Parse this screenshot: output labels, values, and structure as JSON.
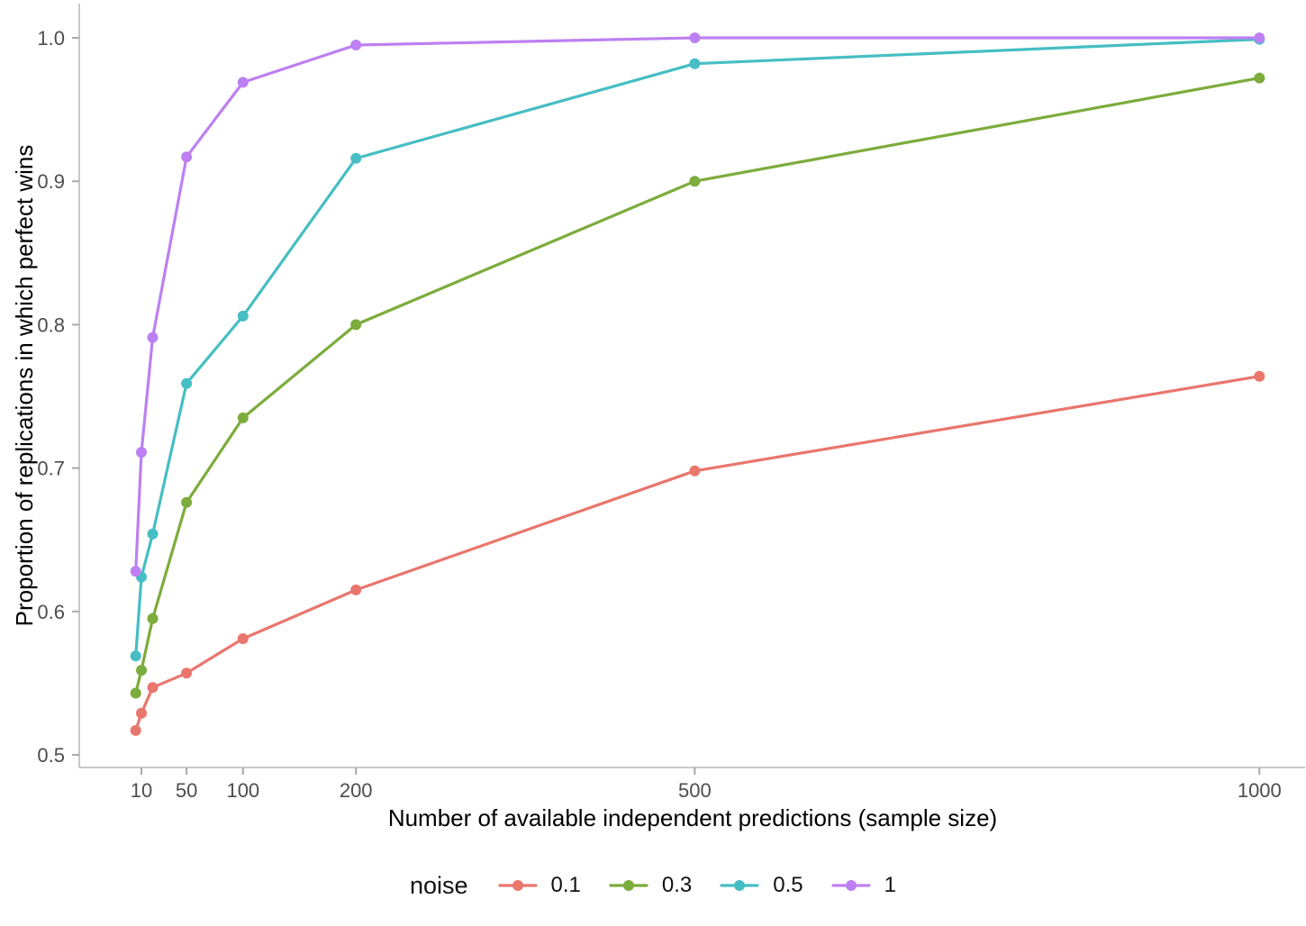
{
  "page": {
    "background_color": "#ffffff"
  },
  "chart_data": {
    "type": "line",
    "title": "",
    "xlabel": "Number of available independent predictions (sample size)",
    "ylabel": "Proportion of replications in which perfect wins",
    "x_scale": "linear",
    "grid": false,
    "xlim": [
      -45,
      1050
    ],
    "ylim": [
      0.4912,
      1.0239
    ],
    "x": [
      5,
      10,
      20,
      50,
      100,
      200,
      500,
      1000
    ],
    "x_ticks": {
      "values": [
        10,
        50,
        100,
        200,
        500,
        1000
      ],
      "labels": [
        "10",
        "50",
        "100",
        "200",
        "500",
        "1000"
      ]
    },
    "y_ticks": {
      "values": [
        0.5,
        0.6,
        0.7,
        0.8,
        0.9,
        1.0
      ],
      "labels": [
        "0.5",
        "0.6",
        "0.7",
        "0.8",
        "0.9",
        "1.0"
      ]
    },
    "legend": {
      "title": "noise",
      "position": "bottom",
      "entries": [
        "0.1",
        "0.3",
        "0.5",
        "1"
      ]
    },
    "series": [
      {
        "name": "0.1",
        "color": "#E9766D",
        "values": [
          0.517,
          0.529,
          0.547,
          0.557,
          0.581,
          0.615,
          0.698,
          0.764
        ]
      },
      {
        "name": "0.3",
        "color": "#7CAC3C",
        "values": [
          0.543,
          0.559,
          0.595,
          0.676,
          0.735,
          0.8,
          0.9,
          0.972
        ]
      },
      {
        "name": "0.5",
        "color": "#46BEC3",
        "values": [
          0.569,
          0.624,
          0.654,
          0.759,
          0.806,
          0.916,
          0.982,
          0.999
        ]
      },
      {
        "name": "1",
        "color": "#BD80F2",
        "values": [
          0.628,
          0.711,
          0.791,
          0.917,
          0.969,
          0.995,
          1.0,
          1.0
        ]
      }
    ],
    "style": {
      "axis_line_color": "#c8c8c8",
      "tick_color": "#a9a9a9",
      "tick_label_color": "#4d4d4d",
      "title_color": "#000000",
      "line_width": 3.2,
      "point_radius": 6
    }
  }
}
